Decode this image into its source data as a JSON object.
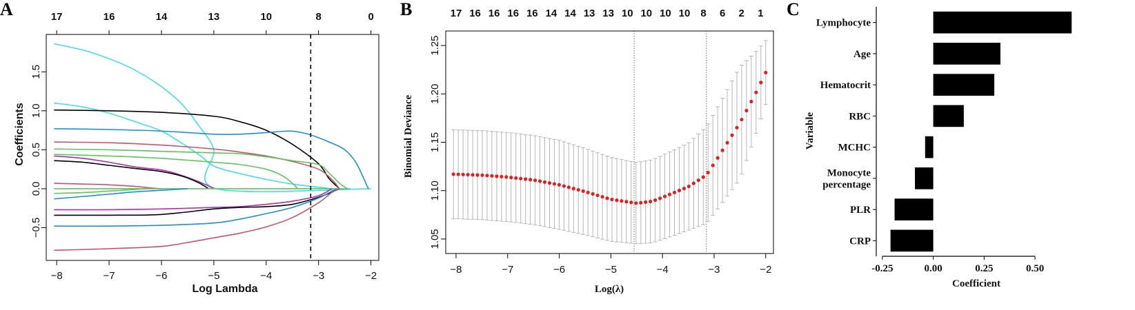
{
  "panels": {
    "a": "A",
    "b": "B",
    "c": "C"
  },
  "chart_data": [
    {
      "type": "line",
      "xlabel": "Log Lambda",
      "ylabel": "Coefficients",
      "xlim": [
        -8.2,
        -1.85
      ],
      "ylim": [
        -0.92,
        1.98
      ],
      "x_ticks": [
        -8,
        -7,
        -6,
        -5,
        -4,
        -3,
        -2
      ],
      "x_tick_labels": [
        "−8",
        "−7",
        "−6",
        "−5",
        "−4",
        "−3",
        "−2"
      ],
      "y_ticks": [
        -0.5,
        0.0,
        0.5,
        1.0,
        1.5
      ],
      "y_tick_labels": [
        "−0.5",
        "0.0",
        "0.5",
        "1.0",
        "1.5"
      ],
      "top_axis": {
        "positions": [
          -8,
          -7,
          -6,
          -5,
          -4,
          -3,
          -2
        ],
        "labels": [
          "17",
          "16",
          "14",
          "13",
          "10",
          "8",
          "0"
        ]
      },
      "vline_x": -3.15,
      "series": [
        {
          "color": "#40e0e0",
          "points": [
            [
              -8.05,
              1.86
            ],
            [
              -7.5,
              1.78
            ],
            [
              -7.0,
              1.67
            ],
            [
              -6.5,
              1.52
            ],
            [
              -6.0,
              1.31
            ],
            [
              -5.6,
              1.08
            ],
            [
              -5.3,
              0.82
            ],
            [
              -5.0,
              0.5
            ],
            [
              -4.95,
              0.0
            ],
            [
              -2.0,
              0.0
            ]
          ]
        },
        {
          "color": "#40e0e0",
          "points": [
            [
              -8.05,
              1.1
            ],
            [
              -7.5,
              1.05
            ],
            [
              -7.0,
              0.97
            ],
            [
              -6.5,
              0.86
            ],
            [
              -6.0,
              0.74
            ],
            [
              -5.6,
              0.58
            ],
            [
              -5.25,
              0.42
            ],
            [
              -5.0,
              0.29
            ],
            [
              -4.6,
              0.21
            ],
            [
              -4.0,
              0.12
            ],
            [
              -3.5,
              0.06
            ],
            [
              -3.0,
              0.02
            ],
            [
              -2.75,
              0.0
            ]
          ]
        },
        {
          "color": "#000000",
          "points": [
            [
              -8.05,
              1.01
            ],
            [
              -7.0,
              1.0
            ],
            [
              -6.0,
              0.98
            ],
            [
              -5.0,
              0.93
            ],
            [
              -4.5,
              0.86
            ],
            [
              -4.0,
              0.75
            ],
            [
              -3.5,
              0.57
            ],
            [
              -3.0,
              0.32
            ],
            [
              -2.8,
              0.13
            ],
            [
              -2.6,
              0.0
            ]
          ]
        },
        {
          "color": "#1f8ed0",
          "points": [
            [
              -8.05,
              0.77
            ],
            [
              -7.0,
              0.76
            ],
            [
              -6.0,
              0.74
            ],
            [
              -5.0,
              0.7
            ],
            [
              -4.5,
              0.7
            ],
            [
              -4.0,
              0.72
            ],
            [
              -3.6,
              0.74
            ],
            [
              -3.4,
              0.73
            ],
            [
              -3.15,
              0.69
            ],
            [
              -2.8,
              0.6
            ],
            [
              -2.5,
              0.5
            ],
            [
              -2.3,
              0.35
            ],
            [
              -2.15,
              0.15
            ],
            [
              -2.05,
              0.0
            ]
          ]
        },
        {
          "color": "#c9526a",
          "points": [
            [
              -8.05,
              0.6
            ],
            [
              -7.0,
              0.59
            ],
            [
              -6.0,
              0.56
            ],
            [
              -5.0,
              0.51
            ],
            [
              -4.5,
              0.47
            ],
            [
              -4.0,
              0.42
            ],
            [
              -3.5,
              0.35
            ],
            [
              -3.0,
              0.25
            ],
            [
              -2.75,
              0.12
            ],
            [
              -2.6,
              0.0
            ]
          ]
        },
        {
          "color": "#5ec45e",
          "points": [
            [
              -8.05,
              0.51
            ],
            [
              -7.0,
              0.5
            ],
            [
              -6.0,
              0.48
            ],
            [
              -5.0,
              0.46
            ],
            [
              -4.5,
              0.45
            ],
            [
              -4.0,
              0.41
            ],
            [
              -3.5,
              0.36
            ],
            [
              -3.0,
              0.31
            ],
            [
              -2.8,
              0.2
            ],
            [
              -2.6,
              0.07
            ],
            [
              -2.45,
              0.0
            ]
          ]
        },
        {
          "color": "#5ec45e",
          "points": [
            [
              -8.05,
              0.44
            ],
            [
              -7.0,
              0.42
            ],
            [
              -6.0,
              0.39
            ],
            [
              -5.0,
              0.34
            ],
            [
              -4.5,
              0.31
            ],
            [
              -4.0,
              0.25
            ],
            [
              -3.7,
              0.17
            ],
            [
              -3.5,
              0.07
            ],
            [
              -3.4,
              0.0
            ]
          ]
        },
        {
          "color": "#b02cb0",
          "points": [
            [
              -8.05,
              0.42
            ],
            [
              -7.5,
              0.39
            ],
            [
              -7.0,
              0.34
            ],
            [
              -6.5,
              0.28
            ],
            [
              -6.0,
              0.24
            ],
            [
              -5.7,
              0.19
            ],
            [
              -5.4,
              0.12
            ],
            [
              -5.15,
              0.05
            ],
            [
              -5.0,
              0.0
            ]
          ]
        },
        {
          "color": "#000000",
          "points": [
            [
              -8.05,
              0.36
            ],
            [
              -7.5,
              0.34
            ],
            [
              -7.0,
              0.3
            ],
            [
              -6.5,
              0.26
            ],
            [
              -6.0,
              0.22
            ],
            [
              -5.6,
              0.16
            ],
            [
              -5.3,
              0.08
            ],
            [
              -5.1,
              0.0
            ]
          ]
        },
        {
          "color": "#c9526a",
          "points": [
            [
              -8.05,
              0.07
            ],
            [
              -7.5,
              0.06
            ],
            [
              -7.0,
              0.05
            ],
            [
              -6.5,
              0.03
            ],
            [
              -6.2,
              0.01
            ],
            [
              -6.0,
              0.0
            ]
          ]
        },
        {
          "color": "#5ec45e",
          "points": [
            [
              -8.05,
              0.0
            ],
            [
              -2.4,
              0.0
            ]
          ]
        },
        {
          "color": "#5ec45e",
          "points": [
            [
              -8.05,
              -0.06
            ],
            [
              -7.5,
              -0.05
            ],
            [
              -7.0,
              -0.03
            ],
            [
              -6.5,
              -0.01
            ],
            [
              -6.3,
              0.0
            ]
          ]
        },
        {
          "color": "#1f8ed0",
          "points": [
            [
              -8.05,
              -0.13
            ],
            [
              -7.5,
              -0.1
            ],
            [
              -7.0,
              -0.07
            ],
            [
              -6.5,
              -0.04
            ],
            [
              -6.0,
              -0.02
            ],
            [
              -5.5,
              0.0
            ]
          ]
        },
        {
          "color": "#b02cb0",
          "points": [
            [
              -8.05,
              -0.27
            ],
            [
              -7.0,
              -0.27
            ],
            [
              -6.0,
              -0.26
            ],
            [
              -5.0,
              -0.24
            ],
            [
              -4.5,
              -0.23
            ],
            [
              -4.0,
              -0.2
            ],
            [
              -3.5,
              -0.16
            ],
            [
              -3.0,
              -0.09
            ],
            [
              -2.75,
              0.0
            ]
          ]
        },
        {
          "color": "#000000",
          "points": [
            [
              -8.05,
              -0.34
            ],
            [
              -7.0,
              -0.34
            ],
            [
              -6.0,
              -0.33
            ],
            [
              -5.0,
              -0.26
            ],
            [
              -4.5,
              -0.24
            ],
            [
              -4.0,
              -0.23
            ],
            [
              -3.5,
              -0.2
            ],
            [
              -3.0,
              -0.11
            ],
            [
              -2.7,
              -0.03
            ],
            [
              -2.6,
              0.0
            ]
          ]
        },
        {
          "color": "#1f8ed0",
          "points": [
            [
              -8.05,
              -0.48
            ],
            [
              -7.0,
              -0.48
            ],
            [
              -6.0,
              -0.47
            ],
            [
              -5.0,
              -0.44
            ],
            [
              -4.5,
              -0.39
            ],
            [
              -4.0,
              -0.32
            ],
            [
              -3.5,
              -0.24
            ],
            [
              -3.0,
              -0.12
            ],
            [
              -2.8,
              -0.05
            ],
            [
              -2.65,
              0.0
            ]
          ]
        },
        {
          "color": "#c9526a",
          "points": [
            [
              -8.05,
              -0.79
            ],
            [
              -7.0,
              -0.77
            ],
            [
              -6.0,
              -0.74
            ],
            [
              -5.5,
              -0.69
            ],
            [
              -5.0,
              -0.63
            ],
            [
              -4.5,
              -0.57
            ],
            [
              -4.0,
              -0.49
            ],
            [
              -3.5,
              -0.37
            ],
            [
              -3.0,
              -0.18
            ],
            [
              -2.75,
              -0.05
            ],
            [
              -2.6,
              0.0
            ]
          ]
        }
      ]
    },
    {
      "type": "scatter",
      "xlabel": "Log(λ)",
      "ylabel": "Binomial Deviance",
      "xlim": [
        -8.2,
        -1.85
      ],
      "ylim": [
        1.035,
        1.265
      ],
      "x_ticks": [
        -8,
        -7,
        -6,
        -5,
        -4,
        -3,
        -2
      ],
      "x_tick_labels": [
        "−8",
        "−7",
        "−6",
        "−5",
        "−4",
        "−3",
        "−2"
      ],
      "y_ticks": [
        1.05,
        1.1,
        1.15,
        1.2,
        1.25
      ],
      "y_tick_labels": [
        "1.05",
        "1.10",
        "1.15",
        "1.20",
        "1.25"
      ],
      "top_axis": {
        "labels": [
          "17",
          "16",
          "16",
          "16",
          "16",
          "14",
          "14",
          "13",
          "13",
          "10",
          "10",
          "10",
          "10",
          "8",
          "6",
          "2",
          "1"
        ],
        "x_start": -8.0,
        "x_end": -2.1
      },
      "vlines_x": [
        -4.55,
        -3.15
      ],
      "series": [
        {
          "name": "",
          "color": "#e02020",
          "x_start": -8.05,
          "x_end": -2.0,
          "n": 66,
          "curve": [
            [
              -8.05,
              1.117
            ],
            [
              -7.5,
              1.116
            ],
            [
              -7.0,
              1.114
            ],
            [
              -6.5,
              1.111
            ],
            [
              -6.0,
              1.106
            ],
            [
              -5.5,
              1.099
            ],
            [
              -5.0,
              1.091
            ],
            [
              -4.5,
              1.087
            ],
            [
              -4.2,
              1.089
            ],
            [
              -4.0,
              1.093
            ],
            [
              -3.5,
              1.104
            ],
            [
              -3.15,
              1.116
            ],
            [
              -3.0,
              1.128
            ],
            [
              -2.5,
              1.17
            ],
            [
              -2.2,
              1.2
            ],
            [
              -2.0,
              1.222
            ]
          ],
          "err_curve": [
            [
              -8.05,
              0.046
            ],
            [
              -6.0,
              0.046
            ],
            [
              -4.5,
              0.042
            ],
            [
              -3.5,
              0.045
            ],
            [
              -3.0,
              0.052
            ],
            [
              -2.5,
              0.058
            ],
            [
              -2.0,
              0.033
            ]
          ]
        }
      ]
    },
    {
      "type": "bar",
      "orientation": "horizontal",
      "xlabel": "Coefficient",
      "ylabel": "Variable",
      "xlim": [
        -0.28,
        0.72
      ],
      "x_ticks": [
        -0.25,
        0.0,
        0.25,
        0.5
      ],
      "x_tick_labels": [
        "-0.25",
        "0.00",
        "0.25",
        "0.50"
      ],
      "categories": [
        "Lymphocyte",
        "Age",
        "Hematocrit",
        "RBC",
        "MCHC",
        "Monocyte percentage",
        "PLR",
        "CRP"
      ],
      "category_lines": [
        [
          "Lymphocyte"
        ],
        [
          "Age"
        ],
        [
          "Hematocrit"
        ],
        [
          "RBC"
        ],
        [
          "MCHC"
        ],
        [
          "Monocyte",
          "percentage"
        ],
        [
          "PLR"
        ],
        [
          "CRP"
        ]
      ],
      "values": [
        0.68,
        0.33,
        0.3,
        0.15,
        -0.04,
        -0.09,
        -0.19,
        -0.21
      ],
      "color": "#000000"
    }
  ]
}
